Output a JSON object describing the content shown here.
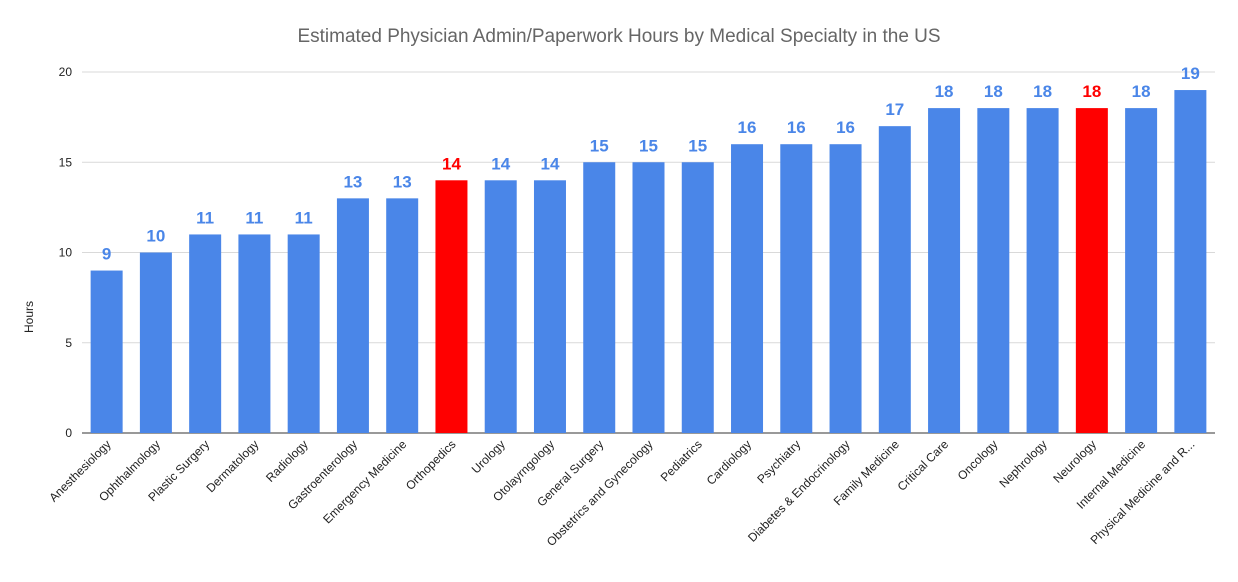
{
  "chart_data": {
    "type": "bar",
    "title": "Estimated Physician Admin/Paperwork Hours by Medical Specialty in the US",
    "xlabel": "",
    "ylabel": "Hours",
    "ylim": [
      0,
      20
    ],
    "yticks": [
      0,
      5,
      10,
      15,
      20
    ],
    "grid": true,
    "categories": [
      "Anesthesiology",
      "Ophthalmology",
      "Plastic Surgery",
      "Dermatology",
      "Radiology",
      "Gastroenterology",
      "Emergency Medicine",
      "Orthopedics",
      "Urology",
      "Otolayrngology",
      "General Surgery",
      "Obstetrics and Gynecology",
      "Pediatrics",
      "Cardiology",
      "Psychiatry",
      "Diabetes & Endocrinology",
      "Family Medicine",
      "Critical Care",
      "Oncology",
      "Nephrology",
      "Neurology",
      "Internal Medicine",
      "Physical Medicine and R..."
    ],
    "values": [
      9,
      10,
      11,
      11,
      11,
      13,
      13,
      14,
      14,
      14,
      15,
      15,
      15,
      16,
      16,
      16,
      17,
      18,
      18,
      18,
      18,
      18,
      19
    ],
    "highlighted": [
      "Orthopedics",
      "Neurology"
    ],
    "colors": {
      "bar": "#4a86e8",
      "highlight": "#ff0000",
      "label": "#4a86e8",
      "highlight_label": "#ff0000"
    }
  }
}
